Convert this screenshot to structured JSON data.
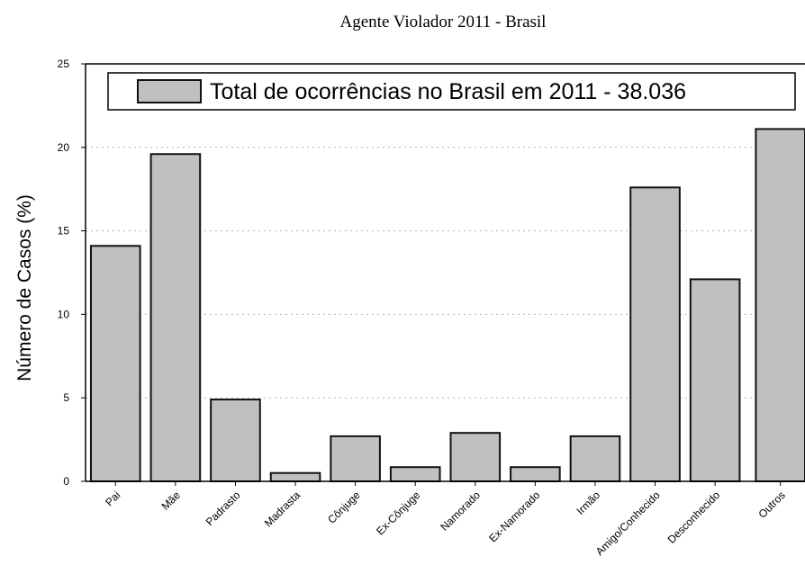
{
  "colors": {
    "bar_fill": "#c0c0c0",
    "bar_stroke": "#111111",
    "grid": "#b0b0b0",
    "axis": "#000000"
  },
  "chart_data": {
    "type": "bar",
    "title": "Agente Violador 2011 - Brasil",
    "xlabel": "",
    "ylabel": "Número de Casos (%)",
    "ylim": [
      0,
      25
    ],
    "yticks": [
      0,
      5,
      10,
      15,
      20,
      25
    ],
    "grid": "horizontal dotted",
    "legend_position": "top",
    "categories": [
      "Pai",
      "Mãe",
      "Padrasto",
      "Madrasta",
      "Cônjuge",
      "Ex-Cônjuge",
      "Namorado",
      "Ex-Namorado",
      "Irmão",
      "Amigo/Conhecido",
      "Desconhecido",
      "Outros"
    ],
    "series": [
      {
        "name": "Total de ocorrências no Brasil em 2011 - 38.036",
        "values": [
          14.1,
          19.6,
          4.9,
          0.5,
          2.7,
          0.85,
          2.9,
          0.85,
          2.7,
          17.6,
          12.1,
          21.1
        ]
      }
    ]
  }
}
